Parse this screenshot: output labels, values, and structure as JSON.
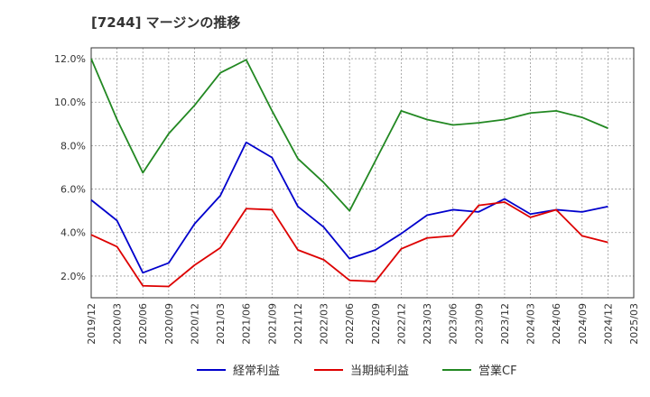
{
  "chart_data": {
    "type": "line",
    "title": "[7244]  マージンの推移",
    "xlabel": "",
    "ylabel": "",
    "ylim": [
      1.0,
      12.5
    ],
    "yticks": [
      2.0,
      4.0,
      6.0,
      8.0,
      10.0,
      12.0
    ],
    "ytick_labels": [
      "2.0%",
      "4.0%",
      "6.0%",
      "8.0%",
      "10.0%",
      "12.0%"
    ],
    "x": [
      "2019/12",
      "2020/03",
      "2020/06",
      "2020/09",
      "2020/12",
      "2021/03",
      "2021/06",
      "2021/09",
      "2021/12",
      "2022/03",
      "2022/06",
      "2022/09",
      "2022/12",
      "2023/03",
      "2023/06",
      "2023/09",
      "2023/12",
      "2024/03",
      "2024/06",
      "2024/09",
      "2024/12",
      "2025/03"
    ],
    "grid": true,
    "legend_position": "bottom",
    "series": [
      {
        "name": "経常利益",
        "color": "#0000cc",
        "values": [
          5.5,
          4.55,
          2.15,
          2.6,
          4.4,
          5.7,
          8.15,
          7.45,
          5.2,
          4.25,
          2.8,
          3.2,
          3.95,
          4.8,
          5.05,
          4.95,
          5.55,
          4.85,
          5.05,
          4.95,
          5.2,
          null
        ]
      },
      {
        "name": "当期純利益",
        "color": "#dd0000",
        "values": [
          3.9,
          3.35,
          1.55,
          1.52,
          2.5,
          3.3,
          5.1,
          5.05,
          3.2,
          2.75,
          1.8,
          1.75,
          3.25,
          3.75,
          3.85,
          5.25,
          5.4,
          4.7,
          5.05,
          3.85,
          3.55,
          null
        ]
      },
      {
        "name": "営業CF",
        "color": "#228822",
        "values": [
          12.0,
          9.2,
          6.75,
          8.55,
          9.85,
          11.35,
          11.95,
          9.6,
          7.4,
          6.3,
          5.0,
          7.3,
          9.6,
          9.2,
          8.95,
          9.05,
          9.2,
          9.5,
          9.6,
          9.3,
          8.8,
          null
        ]
      }
    ]
  }
}
